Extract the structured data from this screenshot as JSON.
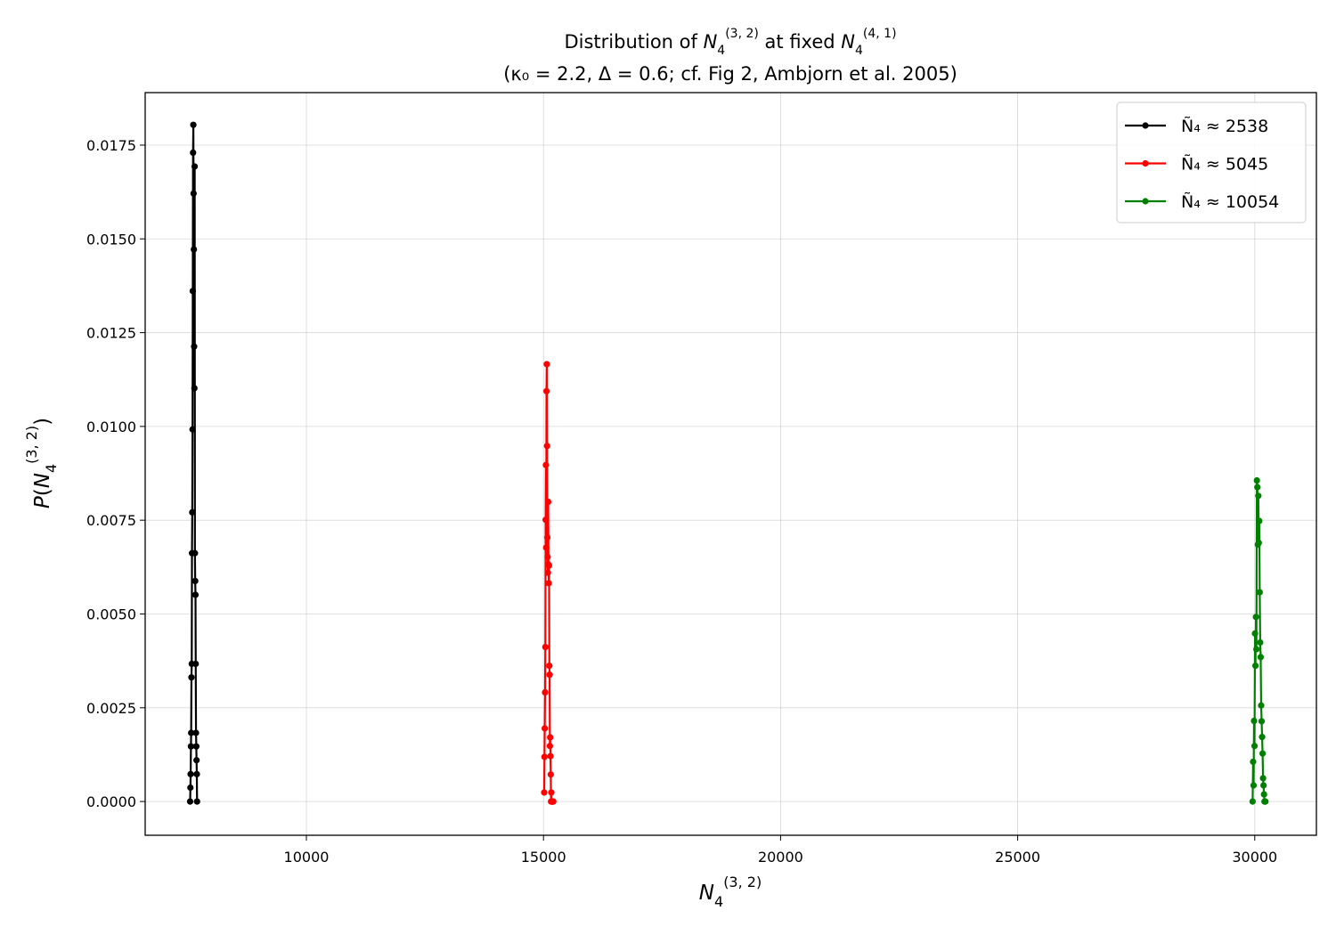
{
  "chart_data": {
    "type": "line",
    "title": {
      "line1_prefix": "Distribution of ",
      "line1_mid": " at fixed ",
      "line2": "(κ₀ = 2.2, Δ = 0.6; cf. Fig 2, Ambjorn et al. 2005)"
    },
    "xlabel": "N₄⁽³,²⁾",
    "ylabel": "P(N₄⁽³,²⁾)",
    "xlim": [
      6600,
      31300
    ],
    "ylim": [
      -0.0009,
      0.0189
    ],
    "xticks": [
      10000,
      15000,
      20000,
      25000,
      30000
    ],
    "xtick_labels": [
      "10000",
      "15000",
      "20000",
      "25000",
      "30000"
    ],
    "yticks": [
      0,
      0.0025,
      0.005,
      0.0075,
      0.01,
      0.0125,
      0.015,
      0.0175
    ],
    "ytick_labels": [
      "0.0000",
      "0.0025",
      "0.0050",
      "0.0075",
      "0.0100",
      "0.0125",
      "0.0150",
      "0.0175"
    ],
    "grid": true,
    "legend_position": "top-right",
    "series": [
      {
        "name": "Ñ₄ ≈ 2538",
        "color": "#000000",
        "x": [
          7548,
          7554,
          7559,
          7565,
          7570,
          7576,
          7582,
          7587,
          7593,
          7599,
          7604,
          7610,
          7616,
          7621,
          7627,
          7632,
          7638,
          7644,
          7649,
          7655,
          7661,
          7666,
          7672,
          7678,
          7683,
          7689,
          7694
        ],
        "y": [
          0.0,
          0.00037,
          0.00073,
          0.00147,
          0.00183,
          0.00331,
          0.00367,
          0.00662,
          0.00771,
          0.00992,
          0.01361,
          0.0173,
          0.01804,
          0.01621,
          0.01472,
          0.01213,
          0.01102,
          0.01693,
          0.00662,
          0.00588,
          0.00551,
          0.00367,
          0.00183,
          0.00147,
          0.0011,
          0.00073,
          0.0
        ]
      },
      {
        "name": "Ñ₄ ≈ 5045",
        "color": "#ff0000",
        "x": [
          15015,
          15021,
          15027,
          15033,
          15039,
          15045,
          15051,
          15057,
          15063,
          15069,
          15075,
          15081,
          15087,
          15093,
          15099,
          15105,
          15111,
          15117,
          15123,
          15129,
          15135,
          15141,
          15147,
          15153,
          15159,
          15165,
          15171,
          15177,
          15183,
          15189,
          15195,
          15201,
          15207
        ],
        "y": [
          0.00024,
          0.00119,
          0.00195,
          0.00291,
          0.00412,
          0.00751,
          0.00897,
          0.00677,
          0.01094,
          0.01166,
          0.00948,
          0.00704,
          0.00652,
          0.0061,
          0.00799,
          0.00632,
          0.00582,
          0.00629,
          0.00362,
          0.00338,
          0.00148,
          0.00171,
          0.00121,
          0.00072,
          0.0,
          0.00024,
          0.0,
          0.0,
          0.0,
          0.0,
          0.0,
          0.0,
          0.0
        ]
      },
      {
        "name": "Ñ₄ ≈ 10054",
        "color": "#008000",
        "x": [
          29955,
          29965,
          29975,
          29985,
          29995,
          30005,
          30015,
          30025,
          30035,
          30045,
          30055,
          30065,
          30075,
          30085,
          30095,
          30105,
          30115,
          30125,
          30135,
          30145,
          30155,
          30165,
          30175,
          30185,
          30195,
          30205,
          30215,
          30225
        ],
        "y": [
          0.0,
          0.00106,
          0.00043,
          0.00215,
          0.00148,
          0.00448,
          0.00362,
          0.00492,
          0.00406,
          0.00856,
          0.00838,
          0.00685,
          0.00815,
          0.0069,
          0.00748,
          0.00558,
          0.00424,
          0.00385,
          0.00256,
          0.00214,
          0.00172,
          0.00128,
          0.00062,
          0.00043,
          0.00019,
          0.0,
          0.0,
          0.0
        ]
      }
    ]
  }
}
